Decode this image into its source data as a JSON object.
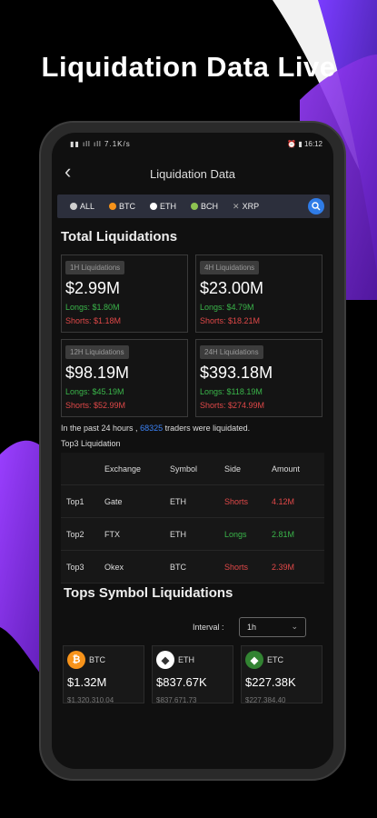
{
  "headline": "Liquidation Data Live",
  "status": {
    "left": "▮▮ ıll ıll 7.1K/s",
    "right": "⏰ ▮ 16:12"
  },
  "nav": {
    "title": "Liquidation Data"
  },
  "coins": [
    {
      "label": "ALL",
      "color": "#cfcfcf"
    },
    {
      "label": "BTC",
      "color": "#f7931a"
    },
    {
      "label": "ETH",
      "color": "#ffffff"
    },
    {
      "label": "BCH",
      "color": "#8dc351"
    },
    {
      "label": "XRP",
      "color": "#aaaaaa"
    }
  ],
  "total": {
    "title": "Total Liquidations",
    "cards": [
      {
        "tag": "1H Liquidations",
        "total": "$2.99M",
        "longs": "Longs: $1.80M",
        "shorts": "Shorts: $1.18M"
      },
      {
        "tag": "4H Liquidations",
        "total": "$23.00M",
        "longs": "Longs: $4.79M",
        "shorts": "Shorts: $18.21M"
      },
      {
        "tag": "12H Liquidations",
        "total": "$98.19M",
        "longs": "Longs: $45.19M",
        "shorts": "Shorts: $52.99M"
      },
      {
        "tag": "24H Liquidations",
        "total": "$393.18M",
        "longs": "Longs: $118.19M",
        "shorts": "Shorts: $274.99M"
      }
    ]
  },
  "info": {
    "prefix": "In the past 24 hours ,",
    "count": "68325",
    "suffix": "traders were liquidated."
  },
  "top3": {
    "label": "Top3 Liquidation",
    "headers": [
      "",
      "Exchange",
      "Symbol",
      "Side",
      "Amount"
    ],
    "rows": [
      {
        "rank": "Top1",
        "exchange": "Gate",
        "symbol": "ETH",
        "side": "Shorts",
        "amount": "4.12M"
      },
      {
        "rank": "Top2",
        "exchange": "FTX",
        "symbol": "ETH",
        "side": "Longs",
        "amount": "2.81M"
      },
      {
        "rank": "Top3",
        "exchange": "Okex",
        "symbol": "BTC",
        "side": "Shorts",
        "amount": "2.39M"
      }
    ]
  },
  "tops": {
    "title": "Tops Symbol Liquidations",
    "interval_label": "Interval :",
    "interval_value": "1h",
    "cards": [
      {
        "symbol": "BTC",
        "amount": "$1.32M",
        "sub": "$1,320,310.04",
        "icon_color": "#f7931a",
        "glyph": "₿"
      },
      {
        "symbol": "ETH",
        "amount": "$837.67K",
        "sub": "$837,671.73",
        "icon_color": "#ffffff",
        "glyph": "◆"
      },
      {
        "symbol": "ETC",
        "amount": "$227.38K",
        "sub": "$227,384.40",
        "icon_color": "#328332",
        "glyph": "◆"
      }
    ]
  }
}
